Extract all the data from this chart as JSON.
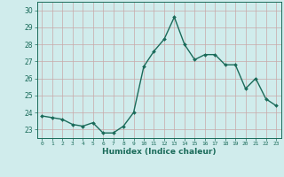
{
  "x": [
    0,
    1,
    2,
    3,
    4,
    5,
    6,
    7,
    8,
    9,
    10,
    11,
    12,
    13,
    14,
    15,
    16,
    17,
    18,
    19,
    20,
    21,
    22,
    23
  ],
  "y": [
    23.8,
    23.7,
    23.6,
    23.3,
    23.2,
    23.4,
    22.8,
    22.8,
    23.2,
    24.0,
    26.7,
    27.6,
    28.3,
    29.6,
    28.0,
    27.1,
    27.4,
    27.4,
    26.8,
    26.8,
    25.4,
    26.0,
    24.8,
    24.4
  ],
  "line_color": "#1a6b5a",
  "marker": "D",
  "marker_size": 2.0,
  "bg_color": "#d0ecec",
  "grid_color": "#c8a8a8",
  "tick_color": "#1a6b5a",
  "xlabel": "Humidex (Indice chaleur)",
  "ylim": [
    22.5,
    30.5
  ],
  "xlim": [
    -0.5,
    23.5
  ],
  "yticks": [
    23,
    24,
    25,
    26,
    27,
    28,
    29,
    30
  ],
  "xticks": [
    0,
    1,
    2,
    3,
    4,
    5,
    6,
    7,
    8,
    9,
    10,
    11,
    12,
    13,
    14,
    15,
    16,
    17,
    18,
    19,
    20,
    21,
    22,
    23
  ],
  "font_color": "#1a6b5a"
}
